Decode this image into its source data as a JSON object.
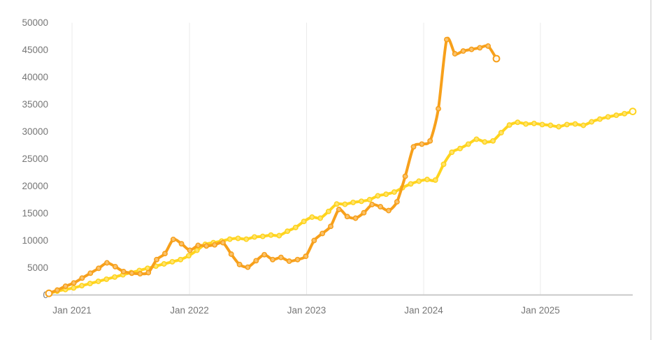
{
  "page": {
    "background": "#ffffff"
  },
  "chart_data": {
    "type": "line",
    "title": "",
    "legend_position": "none",
    "grid": "vertical-only",
    "xlabel": "",
    "ylabel": "",
    "ylim": [
      0,
      50000
    ],
    "y_tick_step": 5000,
    "x_axis": {
      "tick_labels": [
        "Jan 2021",
        "Jan 2022",
        "Jan 2023",
        "Jan 2024",
        "Jan 2025"
      ]
    },
    "y_axis": {
      "tick_labels": [
        "0",
        "5000",
        "10000",
        "15000",
        "20000",
        "25000",
        "30000",
        "35000",
        "40000",
        "45000",
        "50000"
      ]
    },
    "series": [
      {
        "name": "yellow-series",
        "color": "#FFD41E",
        "values": [
          300,
          700,
          1000,
          1300,
          1700,
          2100,
          2500,
          2900,
          3300,
          3700,
          4100,
          4500,
          4900,
          5300,
          5700,
          6100,
          6500,
          7200,
          8200,
          9300,
          9600,
          9900,
          10250,
          10400,
          10250,
          10650,
          10750,
          11000,
          10900,
          11700,
          12400,
          13500,
          14300,
          14100,
          15350,
          16700,
          16650,
          17000,
          17200,
          17500,
          18200,
          18500,
          18900,
          19700,
          20400,
          20900,
          21200,
          21100,
          24000,
          26200,
          26900,
          27700,
          28600,
          28100,
          28300,
          29800,
          31200,
          31700,
          31400,
          31500,
          31300,
          31150,
          30900,
          31300,
          31400,
          31150,
          31800,
          32300,
          32700,
          33000,
          33300,
          33700
        ]
      },
      {
        "name": "orange-series",
        "color": "#F7A01B",
        "values": [
          300,
          900,
          1600,
          2200,
          3100,
          4000,
          4900,
          5900,
          5200,
          4300,
          4000,
          3900,
          4100,
          6500,
          7600,
          10200,
          9400,
          8200,
          9100,
          9000,
          9200,
          9600,
          7500,
          5600,
          5100,
          6300,
          7400,
          6500,
          6900,
          6200,
          6500,
          7100,
          10000,
          11300,
          12600,
          15700,
          14400,
          14100,
          15100,
          16600,
          16200,
          15500,
          17100,
          21800,
          27200,
          27700,
          28300,
          34200,
          46900,
          44300,
          44800,
          45100,
          45400,
          45700,
          43400
        ]
      }
    ],
    "style": {
      "axis_line_color": "#c9c9c9",
      "gridline_color": "#ebebeb",
      "tick_label_color": "#767676"
    }
  }
}
